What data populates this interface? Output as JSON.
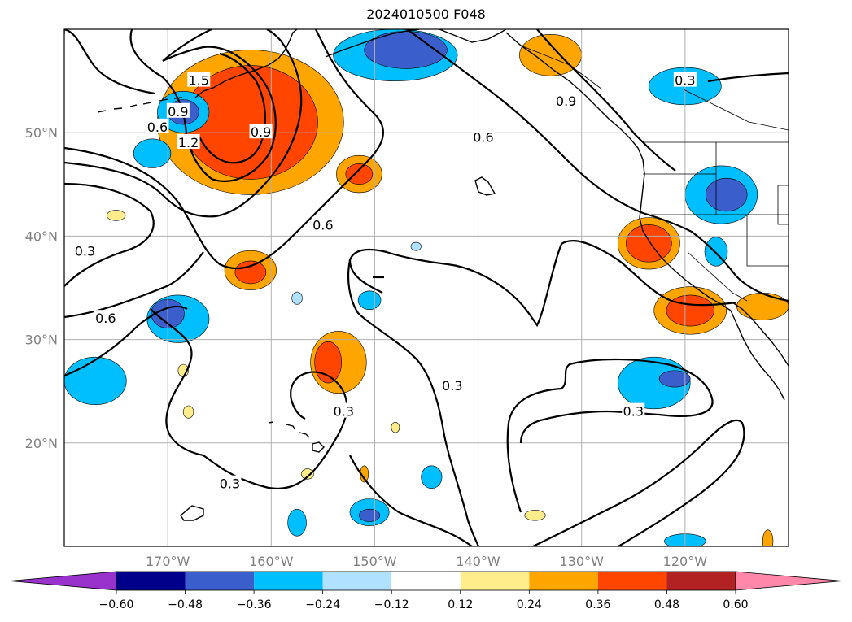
{
  "title": "2024010500 F048",
  "map": {
    "lon_range": [
      -180,
      -110
    ],
    "lat_range": [
      10,
      60
    ],
    "lon_ticks": [
      {
        "value": -170,
        "label": "170°W"
      },
      {
        "value": -160,
        "label": "160°W"
      },
      {
        "value": -150,
        "label": "150°W"
      },
      {
        "value": -140,
        "label": "140°W"
      },
      {
        "value": -130,
        "label": "130°W"
      },
      {
        "value": -120,
        "label": "120°W"
      }
    ],
    "lat_ticks": [
      {
        "value": 50,
        "label": "50°N"
      },
      {
        "value": 40,
        "label": "40°N"
      },
      {
        "value": 30,
        "label": "30°N"
      },
      {
        "value": 20,
        "label": "20°N"
      }
    ],
    "grid": true,
    "contour_labels": [
      {
        "text": "1.5",
        "lon": -167,
        "lat": 55
      },
      {
        "text": "0.9",
        "lon": -169,
        "lat": 52
      },
      {
        "text": "1.2",
        "lon": -168,
        "lat": 49
      },
      {
        "text": "0.9",
        "lon": -161,
        "lat": 50
      },
      {
        "text": "0.6",
        "lon": -171,
        "lat": 50.5
      },
      {
        "text": "0.9",
        "lon": -131.5,
        "lat": 53
      },
      {
        "text": "0.6",
        "lon": -139.5,
        "lat": 49.5
      },
      {
        "text": "0.6",
        "lon": -155,
        "lat": 41
      },
      {
        "text": "0.3",
        "lon": -178,
        "lat": 38.5
      },
      {
        "text": "0.6",
        "lon": -176,
        "lat": 32
      },
      {
        "text": "0.3",
        "lon": -120,
        "lat": 55
      },
      {
        "text": "0.3",
        "lon": -153,
        "lat": 23
      },
      {
        "text": "0.3",
        "lon": -142.5,
        "lat": 25.5
      },
      {
        "text": "0.3",
        "lon": -125,
        "lat": 23
      },
      {
        "text": "0.3",
        "lon": -164,
        "lat": 16
      }
    ],
    "blobs": [
      {
        "lon": -162,
        "lat": 51,
        "rx": 9,
        "ry": 7,
        "value": 0.26
      },
      {
        "lon": -162,
        "lat": 51,
        "rx": 6.5,
        "ry": 5.5,
        "value": 0.38
      },
      {
        "lon": -148,
        "lat": 57.5,
        "rx": 6,
        "ry": 2.5,
        "value": -0.26
      },
      {
        "lon": -147,
        "lat": 58,
        "rx": 4,
        "ry": 1.8,
        "value": -0.38
      },
      {
        "lon": -168.5,
        "lat": 52,
        "rx": 2.5,
        "ry": 2,
        "value": -0.26
      },
      {
        "lon": -168.5,
        "lat": 52,
        "rx": 1.5,
        "ry": 1.2,
        "value": -0.38
      },
      {
        "lon": -171.5,
        "lat": 48,
        "rx": 1.8,
        "ry": 1.4,
        "value": -0.26
      },
      {
        "lon": -133,
        "lat": 57.5,
        "rx": 3,
        "ry": 2,
        "value": 0.26
      },
      {
        "lon": -120,
        "lat": 54.5,
        "rx": 3.5,
        "ry": 1.8,
        "value": -0.26
      },
      {
        "lon": -116.5,
        "lat": 44,
        "rx": 3.5,
        "ry": 2.8,
        "value": -0.26
      },
      {
        "lon": -116,
        "lat": 44,
        "rx": 2,
        "ry": 1.6,
        "value": -0.38
      },
      {
        "lon": -151.5,
        "lat": 46,
        "rx": 2.2,
        "ry": 1.8,
        "value": 0.26
      },
      {
        "lon": -151.5,
        "lat": 46,
        "rx": 1.3,
        "ry": 1,
        "value": 0.38
      },
      {
        "lon": -123.5,
        "lat": 39.3,
        "rx": 3,
        "ry": 2.5,
        "value": 0.26
      },
      {
        "lon": -123.5,
        "lat": 39.3,
        "rx": 2.2,
        "ry": 1.8,
        "value": 0.38
      },
      {
        "lon": -117,
        "lat": 38.5,
        "rx": 1.1,
        "ry": 1.4,
        "value": -0.26
      },
      {
        "lon": -162,
        "lat": 36.7,
        "rx": 2.5,
        "ry": 1.9,
        "value": 0.26
      },
      {
        "lon": -162,
        "lat": 36.5,
        "rx": 1.5,
        "ry": 1.1,
        "value": 0.38
      },
      {
        "lon": -119.5,
        "lat": 32.8,
        "rx": 3.5,
        "ry": 2.3,
        "value": 0.26
      },
      {
        "lon": -119.5,
        "lat": 32.8,
        "rx": 2.3,
        "ry": 1.5,
        "value": 0.38
      },
      {
        "lon": -112.5,
        "lat": 33.2,
        "rx": 2.5,
        "ry": 1.3,
        "value": 0.26
      },
      {
        "lon": -169,
        "lat": 32,
        "rx": 3,
        "ry": 2.3,
        "value": -0.26
      },
      {
        "lon": -170,
        "lat": 32.5,
        "rx": 1.6,
        "ry": 1.4,
        "value": -0.38
      },
      {
        "lon": -177,
        "lat": 26,
        "rx": 3,
        "ry": 2.3,
        "value": -0.26
      },
      {
        "lon": -153.5,
        "lat": 27.8,
        "rx": 2.7,
        "ry": 3,
        "value": 0.26
      },
      {
        "lon": -154.5,
        "lat": 27.8,
        "rx": 1.3,
        "ry": 2,
        "value": 0.38
      },
      {
        "lon": -150.5,
        "lat": 33.8,
        "rx": 1.1,
        "ry": 0.9,
        "value": -0.26
      },
      {
        "lon": -123,
        "lat": 25.8,
        "rx": 3.5,
        "ry": 2.5,
        "value": -0.26
      },
      {
        "lon": -121,
        "lat": 26.2,
        "rx": 1.5,
        "ry": 0.8,
        "value": -0.38
      },
      {
        "lon": -144.5,
        "lat": 16.7,
        "rx": 1,
        "ry": 1.1,
        "value": -0.26
      },
      {
        "lon": -150.5,
        "lat": 13.3,
        "rx": 1.9,
        "ry": 1.3,
        "value": -0.26
      },
      {
        "lon": -150.5,
        "lat": 13,
        "rx": 1,
        "ry": 0.6,
        "value": -0.38
      },
      {
        "lon": -157.5,
        "lat": 12.3,
        "rx": 0.9,
        "ry": 1.3,
        "value": -0.26
      },
      {
        "lon": -120,
        "lat": 10.5,
        "rx": 2,
        "ry": 0.7,
        "value": -0.26
      },
      {
        "lon": -175,
        "lat": 42,
        "rx": 0.9,
        "ry": 0.5,
        "value": 0.14
      },
      {
        "lon": -168.5,
        "lat": 27,
        "rx": 0.5,
        "ry": 0.6,
        "value": 0.14
      },
      {
        "lon": -168,
        "lat": 23,
        "rx": 0.5,
        "ry": 0.6,
        "value": 0.14
      },
      {
        "lon": -156.5,
        "lat": 17,
        "rx": 0.6,
        "ry": 0.5,
        "value": 0.14
      },
      {
        "lon": -148,
        "lat": 21.5,
        "rx": 0.4,
        "ry": 0.5,
        "value": 0.14
      },
      {
        "lon": -151,
        "lat": 17,
        "rx": 0.4,
        "ry": 0.8,
        "value": 0.26
      },
      {
        "lon": -134.5,
        "lat": 13,
        "rx": 1,
        "ry": 0.5,
        "value": 0.14
      },
      {
        "lon": -157.5,
        "lat": 34,
        "rx": 0.5,
        "ry": 0.6,
        "value": -0.14
      },
      {
        "lon": -146,
        "lat": 39,
        "rx": 0.5,
        "ry": 0.4,
        "value": -0.14
      },
      {
        "lon": -112,
        "lat": 10.5,
        "rx": 0.5,
        "ry": 1.1,
        "value": 0.26
      }
    ]
  },
  "colorbar": {
    "ticks": [
      "−0.60",
      "−0.48",
      "−0.36",
      "−0.24",
      "−0.12",
      "0.12",
      "0.24",
      "0.36",
      "0.48",
      "0.60"
    ],
    "under_color": "#9932cc",
    "over_color": "#ff88aa",
    "colors": [
      "#00008b",
      "#3a5fcd",
      "#00bfff",
      "#b0e2ff",
      "#ffffff",
      "#ffec8b",
      "#ffa500",
      "#ff4500",
      "#b22222"
    ]
  }
}
